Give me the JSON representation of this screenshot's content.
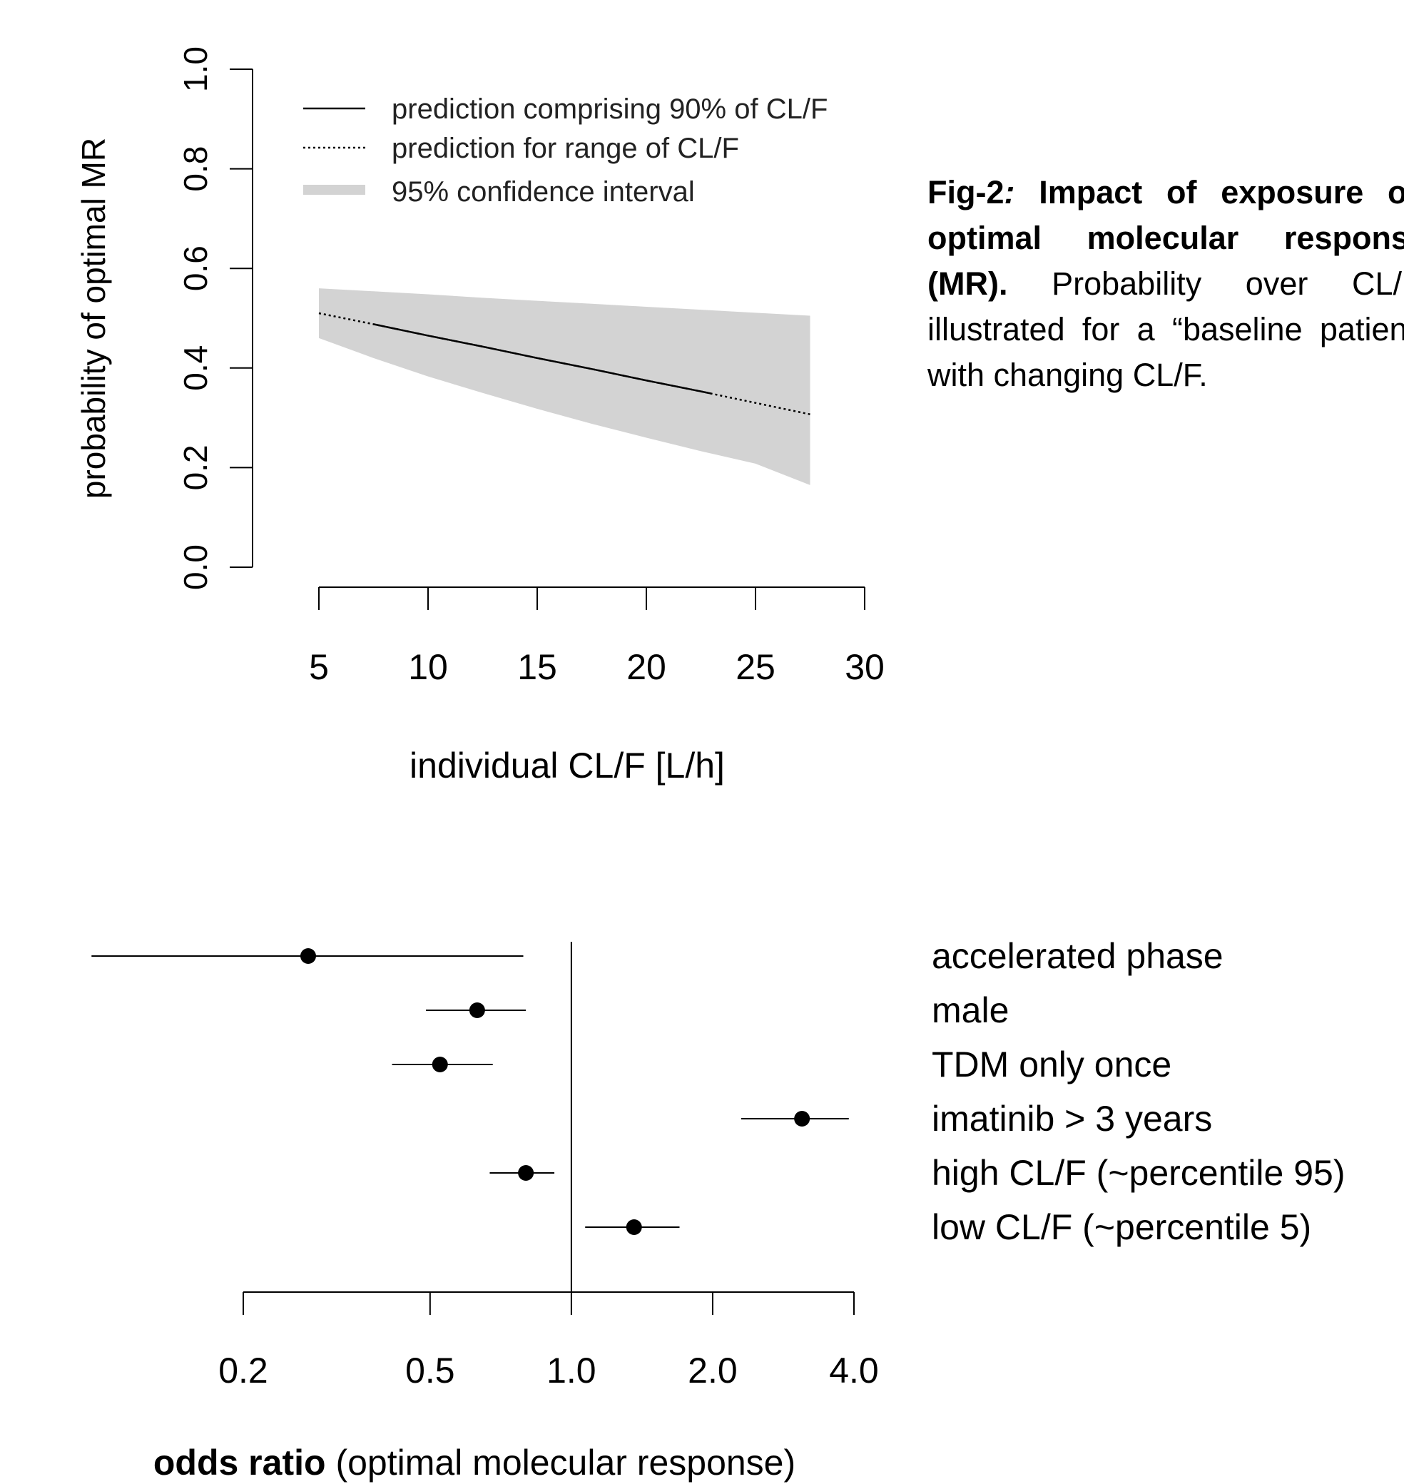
{
  "caption": {
    "fig_label": "Fig-2",
    "colon": ":",
    "title": " Impact of exposure on optimal molecular response (MR).",
    "body": " Probability over CL/F, illustrated for a “baseline patient” with changing CL/F."
  },
  "chart_data": [
    {
      "type": "line",
      "title": "",
      "xlabel": "individual CL/F [L/h]",
      "ylabel": "probability of optimal MR",
      "xlim": [
        5,
        30
      ],
      "ylim": [
        0,
        1
      ],
      "xticks": [
        "5",
        "10",
        "15",
        "20",
        "25",
        "30"
      ],
      "yticks": [
        "0.0",
        "0.2",
        "0.4",
        "0.6",
        "0.8",
        "1.0"
      ],
      "grid": false,
      "legend_position": "top-left",
      "legend": [
        {
          "label": "prediction comprising 90% of CL/F",
          "style": "solid"
        },
        {
          "label": "prediction for range of CL/F",
          "style": "dotted"
        },
        {
          "label": "95% confidence interval",
          "style": "band"
        }
      ],
      "x": [
        5,
        7.5,
        10,
        12.5,
        15,
        17.5,
        20,
        22.5,
        25,
        27.5
      ],
      "series": [
        {
          "name": "prediction for range of CL/F",
          "style": "dotted",
          "x_range": [
            5,
            27.5
          ],
          "values": [
            0.51,
            0.488,
            0.465,
            0.443,
            0.42,
            0.398,
            0.375,
            0.353,
            0.33,
            0.307
          ]
        },
        {
          "name": "prediction comprising 90% of CL/F",
          "style": "solid",
          "x_range": [
            7.5,
            23
          ],
          "values": [
            0.51,
            0.488,
            0.465,
            0.443,
            0.42,
            0.398,
            0.375,
            0.353,
            0.33,
            0.307
          ]
        },
        {
          "name": "95% confidence interval",
          "style": "band",
          "upper": [
            0.56,
            0.554,
            0.548,
            0.541,
            0.535,
            0.529,
            0.523,
            0.517,
            0.511,
            0.505
          ],
          "lower": [
            0.46,
            0.42,
            0.383,
            0.35,
            0.318,
            0.288,
            0.26,
            0.233,
            0.208,
            0.165
          ]
        }
      ]
    },
    {
      "type": "scatter",
      "title": "",
      "xlabel_bold": "odds ratio",
      "xlabel_rest": " (optimal molecular response)",
      "scale": "log",
      "xlim": [
        0.2,
        4.0
      ],
      "xticks": [
        0.2,
        0.5,
        1.0,
        2.0,
        4.0
      ],
      "xtick_labels": [
        "0.2",
        "0.5",
        "1.0",
        "2.0",
        "4.0"
      ],
      "reference_line": 1.0,
      "categories": [
        "accelerated phase",
        "male",
        "TDM only once",
        "imatinib > 3 years",
        "high CL/F (~percentile 95)",
        "low CL/F (~percentile 5)"
      ],
      "estimate": [
        0.275,
        0.63,
        0.525,
        3.1,
        0.8,
        1.36
      ],
      "lower": [
        0.095,
        0.49,
        0.415,
        2.3,
        0.67,
        1.07
      ],
      "upper": [
        0.79,
        0.8,
        0.68,
        3.9,
        0.92,
        1.7
      ]
    }
  ]
}
